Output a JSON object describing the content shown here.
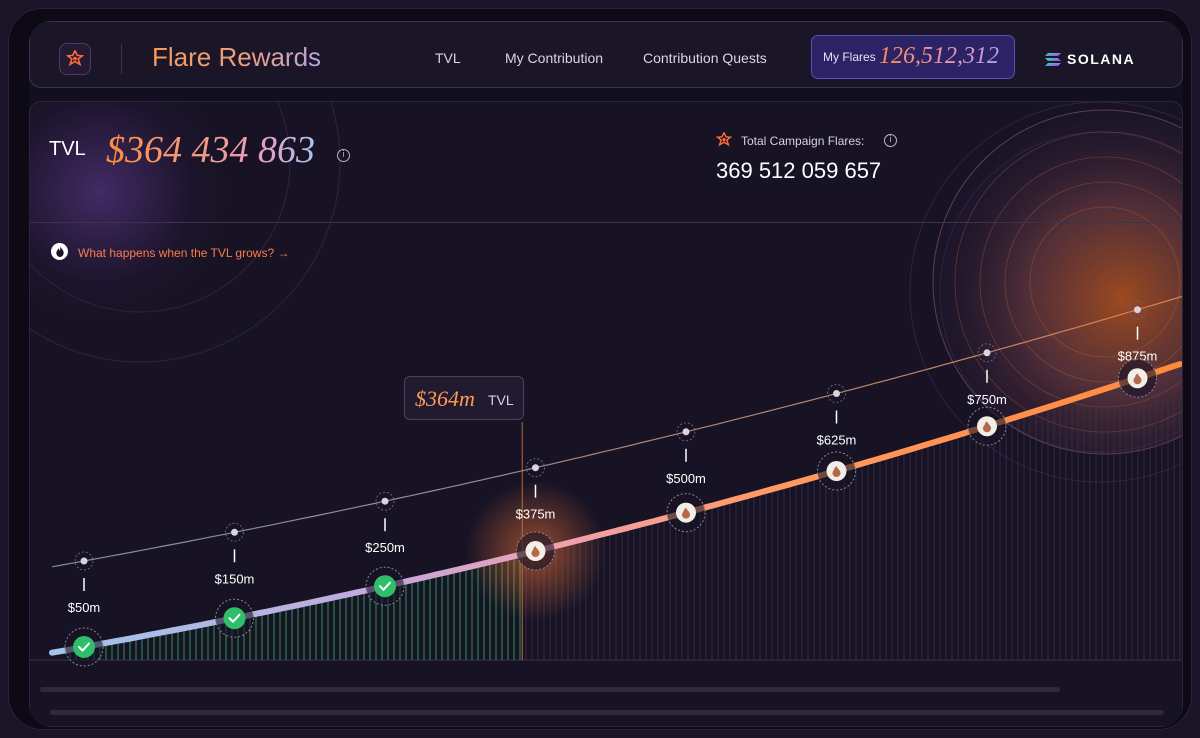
{
  "header": {
    "app_title": "Flare Rewards",
    "nav": [
      "TVL",
      "My Contribution",
      "Contribution Quests"
    ],
    "my_flares_label": "My Flares",
    "my_flares_value": "126,512,312",
    "network": "SOLANA",
    "logo_icon": "flare-star-icon"
  },
  "tvl": {
    "label": "TVL",
    "value": "$364 434 863",
    "info_icon": "info-icon"
  },
  "campaign": {
    "label": "Total Campaign Flares:",
    "value": "369 512 059 657"
  },
  "what_link": {
    "text": "What happens when the TVL grows? →",
    "icon": "flame-icon"
  },
  "tooltip": {
    "value": "$364m",
    "unit": "TVL"
  },
  "colors": {
    "accent_orange": "#ff8b3f",
    "completed_green": "#2fbf6a",
    "line_start": "#9fc6ea",
    "line_end": "#ff8a3d"
  },
  "chart_data": {
    "type": "line",
    "current_tvl_m": 364,
    "milestones": [
      {
        "label": "$50m",
        "value_m": 50,
        "completed": true
      },
      {
        "label": "$150m",
        "value_m": 150,
        "completed": true
      },
      {
        "label": "$250m",
        "value_m": 250,
        "completed": true
      },
      {
        "label": "$375m",
        "value_m": 375,
        "completed": false
      },
      {
        "label": "$500m",
        "value_m": 500,
        "completed": false
      },
      {
        "label": "$625m",
        "value_m": 625,
        "completed": false
      },
      {
        "label": "$750m",
        "value_m": 750,
        "completed": false
      },
      {
        "label": "$875m",
        "value_m": 875,
        "completed": false
      }
    ]
  }
}
